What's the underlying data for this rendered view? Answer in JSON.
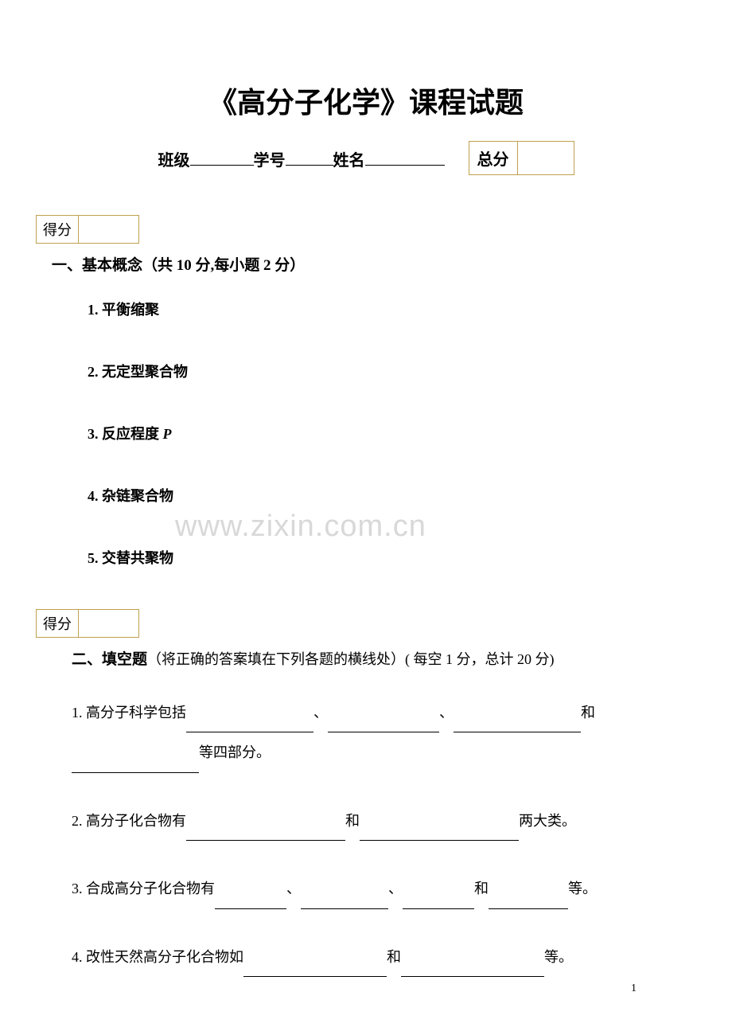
{
  "title": "《高分子化学》课程试题",
  "header": {
    "class_label": "班级",
    "id_label": "学号",
    "name_label": "姓名",
    "total_label": "总分"
  },
  "score_label": "得分",
  "section1": {
    "title": "一、基本概念（共 10 分,每小题 2 分）",
    "items": [
      "1.  平衡缩聚",
      "2.  无定型聚合物",
      "3.  反应程度 ",
      "4.  杂链聚合物",
      "5.  交替共聚物"
    ],
    "item3_suffix": "P"
  },
  "section2": {
    "title_main": "二、填空题",
    "title_sub": "（将正确的答案填在下列各题的横线处）( 每空 1 分，总计 20 分)",
    "q1_prefix": "1.  高分子科学包括",
    "q1_sep": "、",
    "q1_and": "和",
    "q1_suffix": "等四部分。",
    "q2_prefix": "2.  高分子化合物有",
    "q2_and": "和",
    "q2_suffix": "两大类。",
    "q3_prefix": "3.  合成高分子化合物有",
    "q3_sep": "、",
    "q3_and": "和",
    "q3_suffix": "等。",
    "q4_prefix": "4.  改性天然高分子化合物如",
    "q4_and": "和",
    "q4_suffix": "等。"
  },
  "watermark": "www.zixin.com.cn",
  "page_number": "1"
}
